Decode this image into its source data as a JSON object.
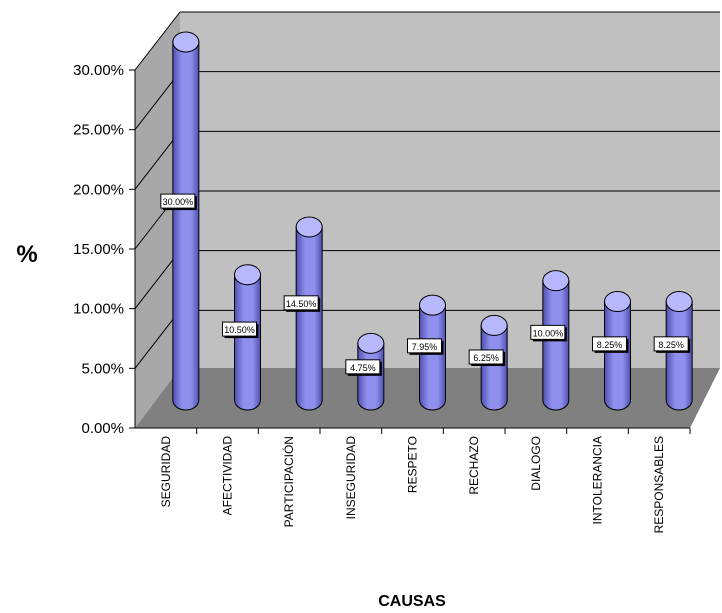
{
  "chart_data": {
    "type": "bar",
    "title": "",
    "xlabel": "CAUSAS",
    "ylabel": "%",
    "ylim": [
      0,
      30
    ],
    "y_ticks": [
      "0.00%",
      "5.00%",
      "10.00%",
      "15.00%",
      "20.00%",
      "25.00%",
      "30.00%"
    ],
    "categories": [
      "SEGURIDAD",
      "AFECTIVIDAD",
      "PARTICIPACIÓN",
      "INSEGURIDAD",
      "RESPETO",
      "RECHAZO",
      "DIALOGO",
      "INTOLERANCIA",
      "RESPONSABLES"
    ],
    "values": [
      30.0,
      10.5,
      14.5,
      4.75,
      7.95,
      6.25,
      10.0,
      8.25,
      8.25
    ],
    "data_labels": [
      "30.00%",
      "10.50%",
      "14.50%",
      "4.75%",
      "7.95%",
      "6.25%",
      "10.00%",
      "8.25%",
      "8.25%"
    ],
    "grid": true,
    "style": "3d-cylinder",
    "colors": {
      "bar_fill": "#8f8fee",
      "bar_dark": "#5050b0",
      "bar_top": "#b8b8ff",
      "wall": "#c0c0c0",
      "floor": "#808080",
      "grid": "#000000"
    }
  }
}
